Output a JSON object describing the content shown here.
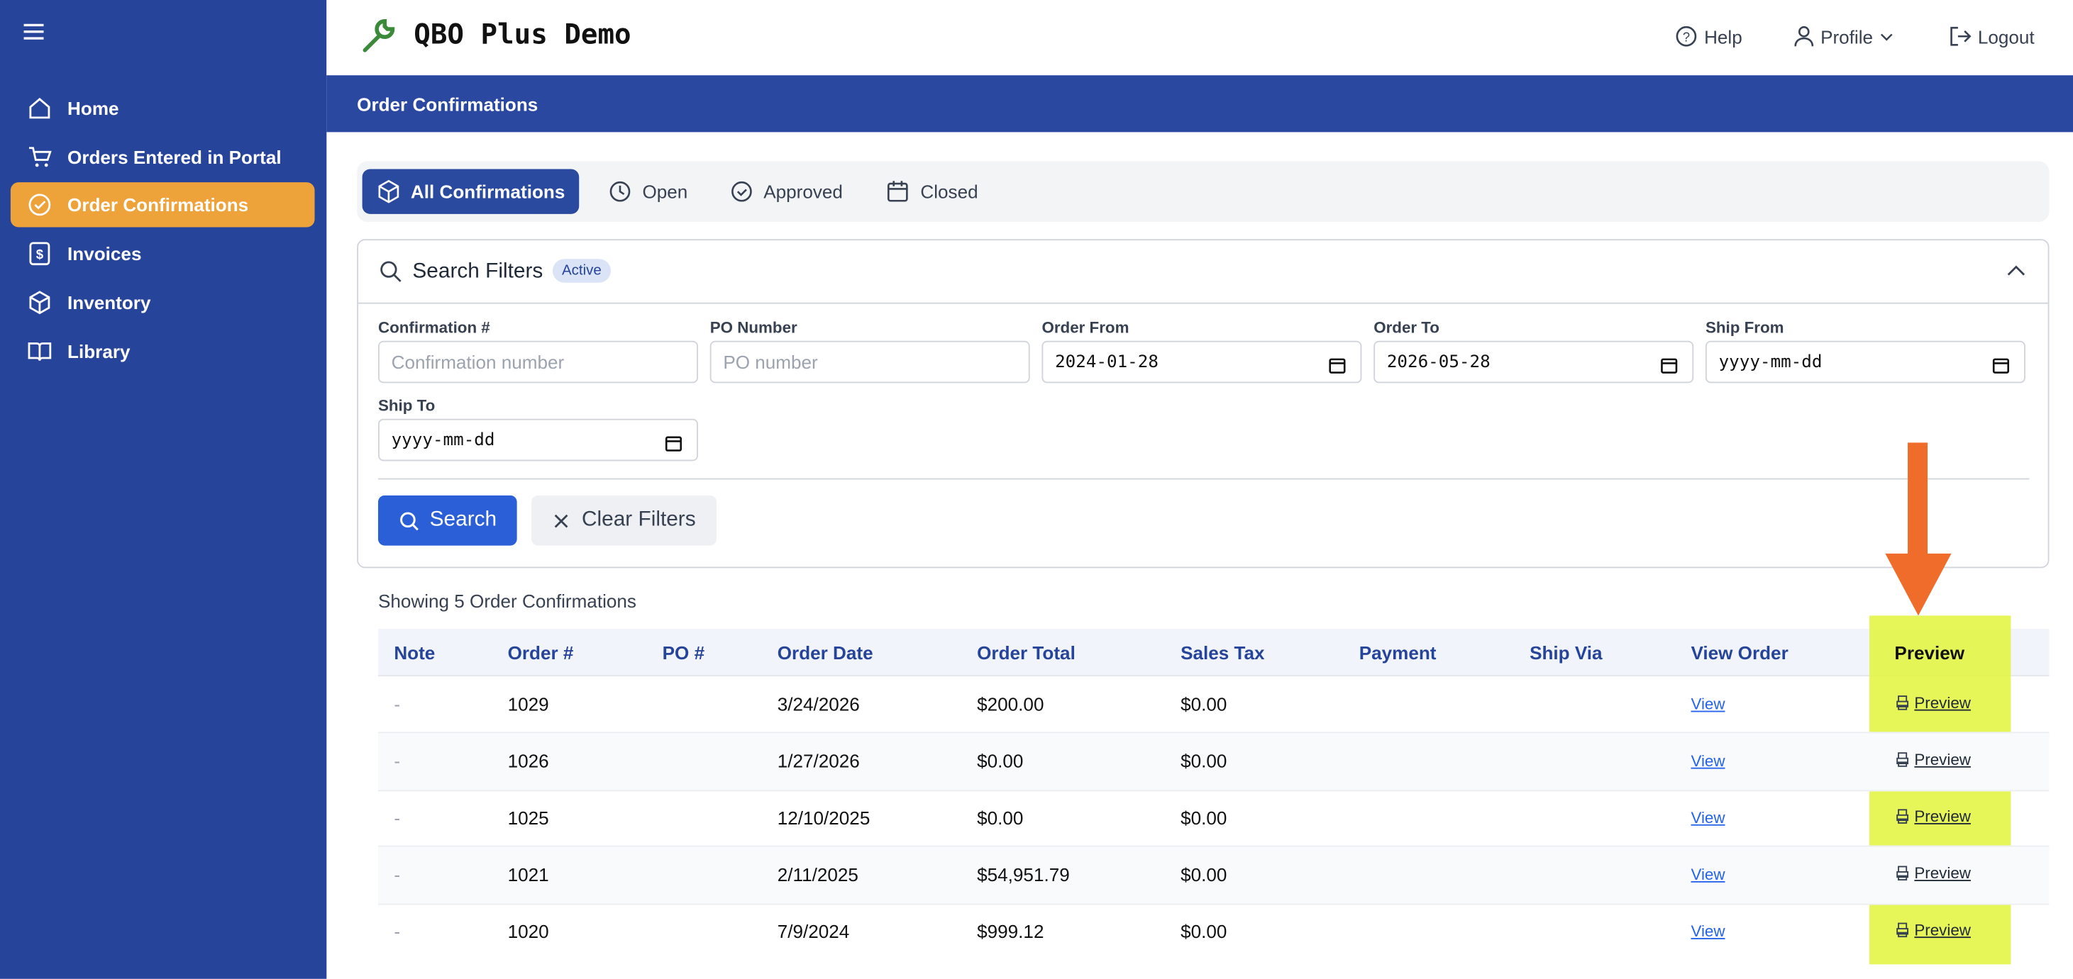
{
  "sidebar": {
    "items": [
      "Home",
      "Orders Entered in Portal",
      "Order Confirmations",
      "Invoices",
      "Inventory",
      "Library"
    ],
    "active": 2
  },
  "header": {
    "title": "QBO Plus Demo",
    "links": [
      "Help",
      "Profile",
      "Logout"
    ]
  },
  "page_title": "Order Confirmations",
  "tabs": [
    "All Confirmations",
    "Open",
    "Approved",
    "Closed"
  ],
  "filters": {
    "title": "Search Filters",
    "badge": "Active",
    "fields": [
      {
        "label": "Confirmation #",
        "placeholder": "Confirmation number"
      },
      {
        "label": "PO Number",
        "placeholder": "PO number"
      },
      {
        "label": "Order From",
        "value": "2024-01-28"
      },
      {
        "label": "Order To",
        "value": "2026-05-28"
      },
      {
        "label": "Ship From",
        "value": "yyyy-mm-dd"
      },
      {
        "label": "Ship To",
        "value": "yyyy-mm-dd"
      }
    ],
    "buttons": [
      "Search",
      "Clear Filters"
    ]
  },
  "table": {
    "summary": "Showing 5 Order Confirmations",
    "columns": [
      "Note",
      "Order #",
      "PO #",
      "Order Date",
      "Order Total",
      "Sales Tax",
      "Payment",
      "Ship Via",
      "View Order",
      "Preview"
    ],
    "rows": [
      {
        "note": "-",
        "order": "1029",
        "date": "3/24/2026",
        "total": "$200.00",
        "tax": "$0.00",
        "view": "View",
        "preview": "Preview"
      },
      {
        "note": "-",
        "order": "1026",
        "date": "1/27/2026",
        "total": "$0.00",
        "tax": "$0.00",
        "view": "View",
        "preview": "Preview"
      },
      {
        "note": "-",
        "order": "1025",
        "date": "12/10/2025",
        "total": "$0.00",
        "tax": "$0.00",
        "view": "View",
        "preview": "Preview"
      },
      {
        "note": "-",
        "order": "1021",
        "date": "2/11/2025",
        "total": "$54,951.79",
        "tax": "$0.00",
        "view": "View",
        "preview": "Preview"
      },
      {
        "note": "-",
        "order": "1020",
        "date": "7/9/2024",
        "total": "$999.12",
        "tax": "$0.00",
        "view": "View",
        "preview": "Preview"
      }
    ]
  }
}
